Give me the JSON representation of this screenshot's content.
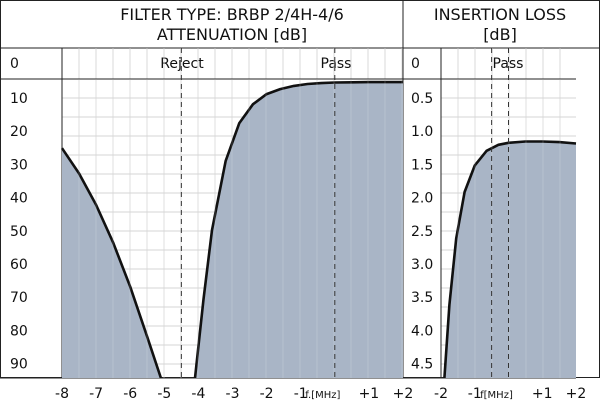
{
  "chart_data": [
    {
      "type": "area",
      "title": "FILTER TYPE: BRBP 2/4H-4/6",
      "subtitle": "ATTENUATION [dB]",
      "xlabel": "f.[MHz]",
      "xlim": [
        -8,
        2
      ],
      "ylim": [
        0,
        95
      ],
      "y_inverted": true,
      "grid": true,
      "zone_labels": {
        "reject": "Reject",
        "pass": "Pass"
      },
      "reference_lines": [
        -4.5,
        0
      ],
      "x_ticks": [
        "-8",
        "-7",
        "-6",
        "-5",
        "-4",
        "-3",
        "-2",
        "-1",
        "f.[MHz]",
        "+1",
        "+2"
      ],
      "y_ticks": [
        "0",
        "10",
        "20",
        "30",
        "40",
        "50",
        "60",
        "70",
        "80",
        "90"
      ],
      "series": [
        {
          "x": [
            -8,
            -7.5,
            -7,
            -6.5,
            -6,
            -5.5,
            -5.1
          ],
          "y": [
            22,
            30,
            40,
            52,
            66,
            82,
            95
          ]
        },
        {
          "x": [
            -4.1,
            -3.85,
            -3.6,
            -3.2,
            -2.8,
            -2.4,
            -2,
            -1.6,
            -1.2,
            -0.8,
            -0.4,
            0,
            0.5,
            1,
            1.5,
            2
          ],
          "y": [
            95,
            70,
            48,
            26,
            14,
            8,
            4.8,
            3.2,
            2.2,
            1.6,
            1.3,
            1.1,
            1.05,
            1.0,
            1.0,
            1.0
          ]
        }
      ]
    },
    {
      "type": "area",
      "title": "INSERTION LOSS",
      "subtitle": "[dB]",
      "xlabel": "f[MHz]",
      "xlim": [
        -2,
        2
      ],
      "ylim": [
        0,
        4.5
      ],
      "y_inverted": true,
      "grid": true,
      "zone_labels": {
        "pass": "Pass"
      },
      "reference_lines": [
        -0.5,
        0
      ],
      "x_ticks": [
        "-2",
        "-1",
        "f[MHz]",
        "+1",
        "+2"
      ],
      "y_ticks": [
        "0",
        "0.5",
        "1.0",
        "1.5",
        "2.0",
        "2.5",
        "3.0",
        "3.5",
        "4.0",
        "4.5"
      ],
      "series": [
        {
          "x": [
            -1.9,
            -1.75,
            -1.55,
            -1.3,
            -1.0,
            -0.65,
            -0.3,
            0,
            0.5,
            1,
            1.5,
            2
          ],
          "y": [
            4.5,
            3.4,
            2.4,
            1.7,
            1.3,
            1.08,
            0.99,
            0.96,
            0.94,
            0.94,
            0.95,
            0.97
          ]
        }
      ]
    }
  ]
}
